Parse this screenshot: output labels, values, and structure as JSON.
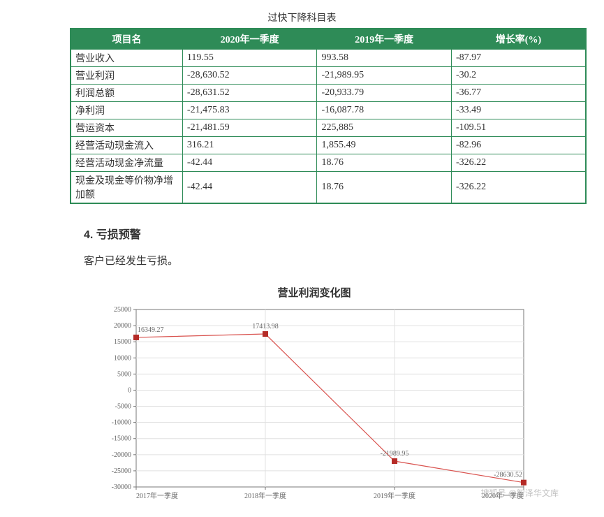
{
  "table": {
    "title": "过快下降科目表",
    "headers": [
      "项目名",
      "2020年一季度",
      "2019年一季度",
      "增长率(%)"
    ],
    "rows": [
      [
        "营业收入",
        "119.55",
        "993.58",
        "-87.97"
      ],
      [
        "营业利润",
        "-28,630.52",
        "-21,989.95",
        "-30.2"
      ],
      [
        "利润总额",
        "-28,631.52",
        "-20,933.79",
        "-36.77"
      ],
      [
        "净利润",
        "-21,475.83",
        "-16,087.78",
        "-33.49"
      ],
      [
        "营运资本",
        "-21,481.59",
        "225,885",
        "-109.51"
      ],
      [
        "经营活动现金流入",
        "316.21",
        "1,855.49",
        "-82.96"
      ],
      [
        "经营活动现金净流量",
        "-42.44",
        "18.76",
        "-326.22"
      ],
      [
        "现金及现金等价物净增加额",
        "-42.44",
        "18.76",
        "-326.22"
      ]
    ],
    "header_bg": "#2e8b57",
    "header_fg": "#ffffff",
    "border_color": "#2e8b57"
  },
  "section": {
    "heading": "4. 亏损预警",
    "body": "客户已经发生亏损。"
  },
  "chart": {
    "type": "line",
    "title": "营业利润变化图",
    "categories": [
      "2017年一季度",
      "2018年一季度",
      "2019年一季度",
      "2020年一季度"
    ],
    "values": [
      16349.27,
      17413.98,
      -21989.95,
      -28630.52
    ],
    "value_labels": [
      "16349.27",
      "17413.98",
      "-21989.95",
      "-28630.52"
    ],
    "ylim": [
      -30000,
      25000
    ],
    "ytick_step": 5000,
    "line_color": "#d9534f",
    "marker_color": "#b52b27",
    "grid_color": "#e0e0e0",
    "axis_color": "#777777",
    "text_color": "#666666",
    "background_color": "#ffffff",
    "title_fontsize": 15,
    "tick_fontsize": 10,
    "label_fontsize": 10,
    "marker_size": 3.5,
    "line_width": 1.2
  },
  "watermark": "搜狐号 @智泽华文库"
}
